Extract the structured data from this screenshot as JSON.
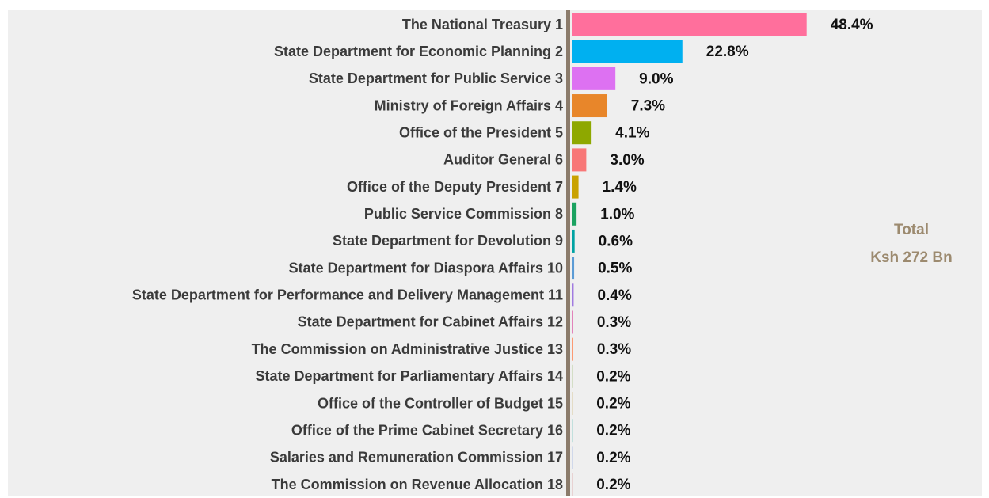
{
  "chart_data": {
    "type": "bar",
    "orientation": "horizontal",
    "categories": [
      "The National Treasury 1",
      "State Department for Economic Planning 2",
      "State Department for Public Service 3",
      "Ministry of Foreign Affairs 4",
      "Office of the President 5",
      "Auditor General 6",
      "Office of the Deputy President 7",
      "Public Service Commission 8",
      "State Department for Devolution 9",
      "State Department for Diaspora Affairs 10",
      "State Department for Performance and Delivery Management 11",
      "State Department for Cabinet Affairs 12",
      "The Commission on Administrative Justice 13",
      "State Department for Parliamentary Affairs 14",
      "Office of the Controller of Budget 15",
      "Office of the Prime Cabinet Secretary 16",
      "Salaries and Remuneration Commission 17",
      "The Commission on Revenue Allocation 18"
    ],
    "values": [
      48.4,
      22.8,
      9.0,
      7.3,
      4.1,
      3.0,
      1.4,
      1.0,
      0.6,
      0.5,
      0.4,
      0.3,
      0.3,
      0.2,
      0.2,
      0.2,
      0.2,
      0.2
    ],
    "value_labels": [
      "48.4%",
      "22.8%",
      "9.0%",
      "7.3%",
      "4.1%",
      "3.0%",
      "1.4%",
      "1.0%",
      "0.6%",
      "0.5%",
      "0.4%",
      "0.3%",
      "0.3%",
      "0.2%",
      "0.2%",
      "0.2%",
      "0.2%",
      "0.2%"
    ],
    "colors": [
      "#ff6f9c",
      "#00b0f0",
      "#dd71f2",
      "#e8862a",
      "#8ea800",
      "#f87777",
      "#c9a200",
      "#1aa260",
      "#00a3a3",
      "#5b9bd5",
      "#a07ae0",
      "#e06fb0",
      "#ff8a5c",
      "#7aa33a",
      "#c09a3a",
      "#2ab0a0",
      "#6a8ad8",
      "#d07070"
    ],
    "xlim": [
      0,
      84.5
    ],
    "annotations": [
      "Total",
      "Ksh 272 Bn"
    ]
  }
}
